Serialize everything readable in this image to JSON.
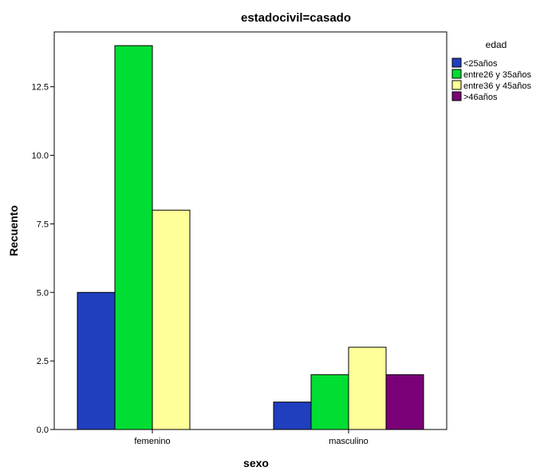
{
  "chart_data": {
    "type": "bar",
    "title": "estadocivil=casado",
    "xlabel": "sexo",
    "ylabel": "Recuento",
    "ylim": [
      0,
      14.5
    ],
    "yticks": [
      {
        "value": 0,
        "label": "0.0"
      },
      {
        "value": 2.5,
        "label": "2.5"
      },
      {
        "value": 5,
        "label": "5.0"
      },
      {
        "value": 7.5,
        "label": "7.5"
      },
      {
        "value": 10,
        "label": "10.0"
      },
      {
        "value": 12.5,
        "label": "12.5"
      }
    ],
    "categories": [
      "femenino",
      "masculino"
    ],
    "series": [
      {
        "name": "<25años",
        "color": "#1f3fbf",
        "values": [
          5,
          1
        ]
      },
      {
        "name": "entre26 y 35años",
        "color": "#00dd33",
        "values": [
          14,
          2
        ]
      },
      {
        "name": "entre36 y 45años",
        "color": "#ffff99",
        "values": [
          8,
          3
        ]
      },
      {
        "name": ">46años",
        "color": "#7a0077",
        "values": [
          null,
          2
        ]
      }
    ],
    "legend": {
      "title": "edad",
      "placement": "right"
    },
    "grid": false
  }
}
